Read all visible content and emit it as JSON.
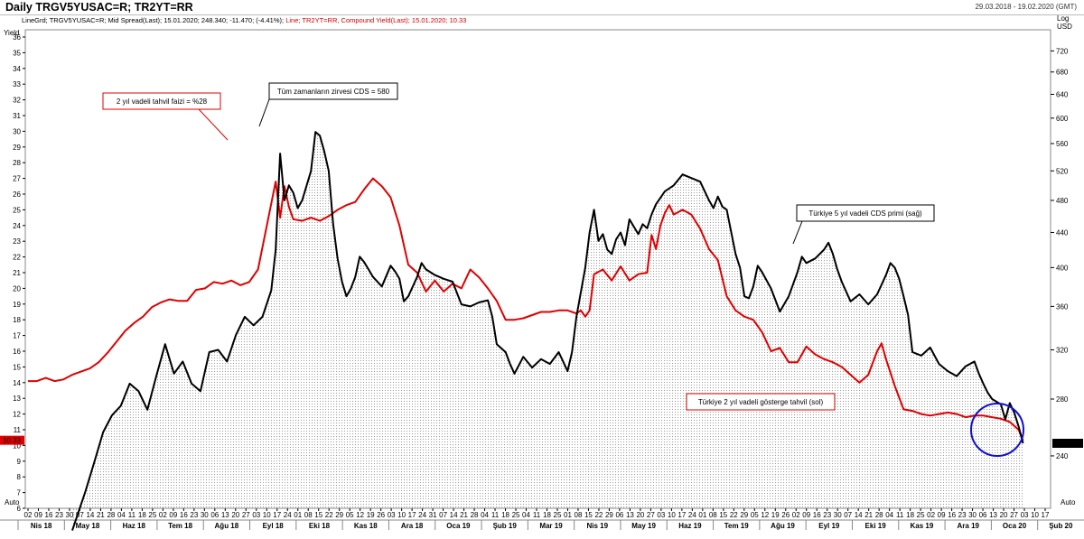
{
  "header": {
    "title": "Daily TRGV5YUSAC=R; TR2YT=RR",
    "date_range": "29.03.2018 - 19.02.2020 (GMT)",
    "info_black": "LineGrd; TRGV5YUSAC=R; Mid Spread(Last); 15.01.2020; 248.340; -11.470; (-4.41%);",
    "info_red": "Line; TR2YT=RR, Compound Yield(Last); 15.01.2020; 10.33"
  },
  "axes": {
    "left_title": "Yield",
    "right_title_1": "Log",
    "right_title_2": "USD",
    "auto_label": "Auto",
    "left_ticks": [
      "6",
      "7",
      "8",
      "9",
      "10",
      "11",
      "12",
      "13",
      "14",
      "15",
      "16",
      "17",
      "18",
      "19",
      "20",
      "21",
      "22",
      "23",
      "24",
      "25",
      "26",
      "27",
      "28",
      "29",
      "30",
      "31",
      "32",
      "33",
      "34",
      "35",
      "36"
    ],
    "right_ticks": [
      "240",
      "280",
      "320",
      "360",
      "400",
      "440",
      "480",
      "520",
      "560",
      "600",
      "640",
      "680",
      "720"
    ],
    "left_marker": "10.33",
    "right_marker": "248.340"
  },
  "x_axis": {
    "day_labels": [
      "02",
      "09",
      "16",
      "23",
      "30",
      "07",
      "14",
      "21",
      "28",
      "04",
      "11",
      "18",
      "25",
      "02",
      "09",
      "16",
      "23",
      "30",
      "06",
      "13",
      "20",
      "27",
      "03",
      "10",
      "17",
      "24",
      "01",
      "08",
      "15",
      "22",
      "29",
      "05",
      "12",
      "19",
      "26",
      "03",
      "10",
      "17",
      "24",
      "31",
      "07",
      "14",
      "21",
      "28",
      "04",
      "11",
      "18",
      "25",
      "04",
      "11",
      "18",
      "25",
      "01",
      "08",
      "15",
      "22",
      "29",
      "06",
      "13",
      "20",
      "27",
      "03",
      "10",
      "17",
      "24",
      "01",
      "08",
      "15",
      "22",
      "29",
      "05",
      "12",
      "19",
      "26",
      "02",
      "09",
      "16",
      "23",
      "30",
      "07",
      "14",
      "21",
      "28",
      "04",
      "11",
      "18",
      "25",
      "02",
      "09",
      "16",
      "23",
      "30",
      "06",
      "13",
      "20",
      "27",
      "03",
      "10",
      "17"
    ],
    "months": [
      "Nis 18",
      "May 18",
      "Haz 18",
      "Tem 18",
      "Ağu 18",
      "Eyl 18",
      "Eki 18",
      "Kas 18",
      "Ara 18",
      "Oca 19",
      "Şub 19",
      "Mar 19",
      "Nis 19",
      "May 19",
      "Haz 19",
      "Tem 19",
      "Ağu 19",
      "Eyl 19",
      "Eki 19",
      "Kas 19",
      "Ara 19",
      "Oca 20",
      "Şub 20"
    ]
  },
  "annotations": {
    "yield_peak": "2 yıl vadeli tahvil faizi = %28",
    "cds_peak": "Tüm zamanların zirvesi CDS = 580",
    "cds_label": "Türkiye 5 yıl vadeli CDS primi (sağ)",
    "yield_label": "Türkiye 2 yıl vadeli gösterge tahvil (sol)"
  },
  "colors": {
    "cds": "#000000",
    "yield": "#e00000",
    "circle": "#1010d0"
  },
  "chart_data": {
    "type": "line",
    "x_unit": "weeks since 2018-04-02",
    "series": [
      {
        "name": "Türkiye 5 yıl vadeli CDS primi (sağ)",
        "axis": "right",
        "points": [
          [
            5.0,
            196
          ],
          [
            6.5,
            218
          ],
          [
            7.5,
            236
          ],
          [
            8.5,
            256
          ],
          [
            9.5,
            268
          ],
          [
            10.5,
            275
          ],
          [
            11.5,
            292
          ],
          [
            12.5,
            286
          ],
          [
            13.5,
            272
          ],
          [
            14.5,
            298
          ],
          [
            15.5,
            325
          ],
          [
            16.5,
            300
          ],
          [
            17.5,
            310
          ],
          [
            18.5,
            292
          ],
          [
            19.5,
            286
          ],
          [
            20.5,
            318
          ],
          [
            21.5,
            320
          ],
          [
            22.5,
            310
          ],
          [
            23.5,
            333
          ],
          [
            24.5,
            350
          ],
          [
            25.5,
            342
          ],
          [
            26.5,
            350
          ],
          [
            27.5,
            376
          ],
          [
            28.0,
            420
          ],
          [
            28.5,
            545
          ],
          [
            29.0,
            480
          ],
          [
            29.5,
            500
          ],
          [
            30.0,
            490
          ],
          [
            30.5,
            470
          ],
          [
            31.0,
            480
          ],
          [
            32.0,
            520
          ],
          [
            32.5,
            578
          ],
          [
            33.0,
            572
          ],
          [
            33.5,
            548
          ],
          [
            34.0,
            520
          ],
          [
            34.5,
            450
          ],
          [
            35.0,
            410
          ],
          [
            35.5,
            385
          ],
          [
            36.0,
            370
          ],
          [
            36.5,
            378
          ],
          [
            37.0,
            390
          ],
          [
            37.5,
            412
          ],
          [
            38.0,
            406
          ],
          [
            38.5,
            398
          ],
          [
            39.0,
            390
          ],
          [
            40.0,
            380
          ],
          [
            41.0,
            402
          ],
          [
            41.5,
            396
          ],
          [
            42.0,
            388
          ],
          [
            42.5,
            365
          ],
          [
            43.0,
            370
          ],
          [
            44.0,
            390
          ],
          [
            44.5,
            405
          ],
          [
            45.0,
            398
          ],
          [
            46.0,
            392
          ],
          [
            47.0,
            388
          ],
          [
            48.0,
            385
          ],
          [
            49.0,
            362
          ],
          [
            50.0,
            360
          ],
          [
            51.0,
            364
          ],
          [
            52.0,
            366
          ],
          [
            52.5,
            350
          ],
          [
            53.0,
            325
          ],
          [
            54.0,
            318
          ],
          [
            54.5,
            308
          ],
          [
            55.0,
            300
          ],
          [
            56.0,
            314
          ],
          [
            57.0,
            305
          ],
          [
            58.0,
            312
          ],
          [
            59.0,
            308
          ],
          [
            60.0,
            318
          ],
          [
            60.5,
            310
          ],
          [
            61.0,
            302
          ],
          [
            61.5,
            318
          ],
          [
            62.0,
            350
          ],
          [
            63.0,
            400
          ],
          [
            63.5,
            440
          ],
          [
            64.0,
            468
          ],
          [
            64.5,
            430
          ],
          [
            65.0,
            438
          ],
          [
            65.5,
            420
          ],
          [
            66.0,
            415
          ],
          [
            66.5,
            432
          ],
          [
            67.0,
            440
          ],
          [
            67.5,
            425
          ],
          [
            68.0,
            456
          ],
          [
            69.0,
            438
          ],
          [
            69.5,
            450
          ],
          [
            70.0,
            445
          ],
          [
            70.5,
            462
          ],
          [
            71.0,
            475
          ],
          [
            72.0,
            492
          ],
          [
            73.0,
            500
          ],
          [
            74.0,
            515
          ],
          [
            75.0,
            510
          ],
          [
            76.0,
            505
          ],
          [
            77.0,
            480
          ],
          [
            77.5,
            470
          ],
          [
            78.0,
            485
          ],
          [
            78.5,
            472
          ],
          [
            79.0,
            468
          ],
          [
            80.0,
            415
          ],
          [
            80.5,
            400
          ],
          [
            81.0,
            370
          ],
          [
            81.5,
            368
          ],
          [
            82.0,
            380
          ],
          [
            82.5,
            402
          ],
          [
            83.0,
            395
          ],
          [
            84.0,
            378
          ],
          [
            85.0,
            355
          ],
          [
            86.0,
            370
          ],
          [
            87.0,
            395
          ],
          [
            87.5,
            412
          ],
          [
            88.0,
            405
          ],
          [
            89.0,
            410
          ],
          [
            90.0,
            420
          ],
          [
            90.5,
            428
          ],
          [
            91.0,
            415
          ],
          [
            91.5,
            398
          ],
          [
            92.0,
            385
          ],
          [
            93.0,
            365
          ],
          [
            94.0,
            372
          ],
          [
            95.0,
            362
          ],
          [
            96.0,
            372
          ],
          [
            97.0,
            392
          ],
          [
            97.5,
            405
          ],
          [
            98.0,
            400
          ],
          [
            98.5,
            388
          ],
          [
            99.0,
            370
          ],
          [
            99.5,
            352
          ],
          [
            100.0,
            318
          ],
          [
            101.0,
            315
          ],
          [
            102.0,
            322
          ],
          [
            103.0,
            308
          ],
          [
            104.0,
            302
          ],
          [
            105.0,
            298
          ],
          [
            106.0,
            306
          ],
          [
            107.0,
            310
          ],
          [
            107.5,
            300
          ],
          [
            108.0,
            292
          ],
          [
            108.5,
            285
          ],
          [
            109.0,
            280
          ],
          [
            110.0,
            276
          ],
          [
            110.5,
            265
          ],
          [
            111.0,
            277
          ],
          [
            111.5,
            270
          ],
          [
            112.0,
            260
          ],
          [
            112.5,
            248.34
          ]
        ]
      },
      {
        "name": "Türkiye 2 yıl vadeli gösterge tahvil (sol)",
        "axis": "left",
        "points": [
          [
            0.0,
            14.1
          ],
          [
            1.0,
            14.1
          ],
          [
            2.0,
            14.3
          ],
          [
            3.0,
            14.1
          ],
          [
            4.0,
            14.2
          ],
          [
            5.0,
            14.5
          ],
          [
            6.0,
            14.7
          ],
          [
            7.0,
            14.9
          ],
          [
            8.0,
            15.3
          ],
          [
            9.0,
            15.9
          ],
          [
            10.0,
            16.6
          ],
          [
            11.0,
            17.3
          ],
          [
            12.0,
            17.8
          ],
          [
            13.0,
            18.2
          ],
          [
            14.0,
            18.8
          ],
          [
            15.0,
            19.1
          ],
          [
            16.0,
            19.3
          ],
          [
            17.0,
            19.2
          ],
          [
            18.0,
            19.2
          ],
          [
            19.0,
            19.9
          ],
          [
            20.0,
            20.0
          ],
          [
            21.0,
            20.4
          ],
          [
            22.0,
            20.3
          ],
          [
            23.0,
            20.5
          ],
          [
            24.0,
            20.2
          ],
          [
            25.0,
            20.4
          ],
          [
            26.0,
            21.2
          ],
          [
            27.0,
            24.0
          ],
          [
            28.0,
            26.8
          ],
          [
            28.5,
            24.5
          ],
          [
            29.0,
            26.5
          ],
          [
            29.5,
            25.2
          ],
          [
            30.0,
            24.4
          ],
          [
            31.0,
            24.3
          ],
          [
            32.0,
            24.5
          ],
          [
            33.0,
            24.3
          ],
          [
            34.0,
            24.6
          ],
          [
            35.0,
            25.0
          ],
          [
            36.0,
            25.3
          ],
          [
            37.0,
            25.5
          ],
          [
            38.0,
            26.3
          ],
          [
            39.0,
            27.0
          ],
          [
            40.0,
            26.5
          ],
          [
            41.0,
            25.8
          ],
          [
            42.0,
            24.0
          ],
          [
            43.0,
            21.5
          ],
          [
            44.0,
            21.0
          ],
          [
            45.0,
            19.8
          ],
          [
            46.0,
            20.5
          ],
          [
            47.0,
            19.8
          ],
          [
            48.0,
            20.3
          ],
          [
            49.0,
            20.0
          ],
          [
            50.0,
            21.2
          ],
          [
            51.0,
            20.7
          ],
          [
            52.0,
            20.0
          ],
          [
            53.0,
            19.2
          ],
          [
            54.0,
            18.0
          ],
          [
            55.0,
            18.0
          ],
          [
            56.0,
            18.1
          ],
          [
            57.0,
            18.3
          ],
          [
            58.0,
            18.5
          ],
          [
            59.0,
            18.5
          ],
          [
            60.0,
            18.6
          ],
          [
            61.0,
            18.6
          ],
          [
            62.0,
            18.4
          ],
          [
            62.5,
            18.6
          ],
          [
            63.0,
            18.2
          ],
          [
            63.5,
            18.6
          ],
          [
            64.0,
            20.9
          ],
          [
            65.0,
            21.2
          ],
          [
            66.0,
            20.5
          ],
          [
            67.0,
            21.4
          ],
          [
            68.0,
            20.5
          ],
          [
            69.0,
            20.9
          ],
          [
            70.0,
            21.0
          ],
          [
            70.5,
            23.4
          ],
          [
            71.0,
            22.5
          ],
          [
            71.5,
            24.0
          ],
          [
            72.0,
            24.8
          ],
          [
            72.5,
            25.3
          ],
          [
            73.0,
            24.7
          ],
          [
            74.0,
            25.0
          ],
          [
            75.0,
            24.7
          ],
          [
            76.0,
            23.8
          ],
          [
            77.0,
            22.5
          ],
          [
            78.0,
            21.8
          ],
          [
            79.0,
            19.5
          ],
          [
            80.0,
            18.6
          ],
          [
            81.0,
            18.2
          ],
          [
            82.0,
            18.0
          ],
          [
            83.0,
            17.2
          ],
          [
            84.0,
            16.0
          ],
          [
            85.0,
            16.2
          ],
          [
            86.0,
            15.3
          ],
          [
            87.0,
            15.3
          ],
          [
            88.0,
            16.3
          ],
          [
            89.0,
            15.8
          ],
          [
            90.0,
            15.5
          ],
          [
            91.0,
            15.3
          ],
          [
            92.0,
            15.0
          ],
          [
            93.0,
            14.5
          ],
          [
            94.0,
            14.0
          ],
          [
            95.0,
            14.5
          ],
          [
            96.0,
            16.0
          ],
          [
            96.5,
            16.5
          ],
          [
            97.0,
            15.5
          ],
          [
            98.0,
            13.8
          ],
          [
            99.0,
            12.3
          ],
          [
            100.0,
            12.2
          ],
          [
            101.0,
            12.0
          ],
          [
            102.0,
            11.9
          ],
          [
            103.0,
            12.0
          ],
          [
            104.0,
            12.1
          ],
          [
            105.0,
            12.0
          ],
          [
            106.0,
            11.8
          ],
          [
            107.0,
            11.9
          ],
          [
            108.0,
            11.9
          ],
          [
            109.0,
            11.8
          ],
          [
            110.0,
            11.7
          ],
          [
            111.0,
            11.5
          ],
          [
            112.0,
            11.0
          ],
          [
            112.5,
            10.33
          ]
        ]
      }
    ],
    "ylim_left": [
      6,
      36
    ],
    "ylim_right_log": [
      200,
      760
    ],
    "xlim": [
      0,
      115
    ]
  }
}
